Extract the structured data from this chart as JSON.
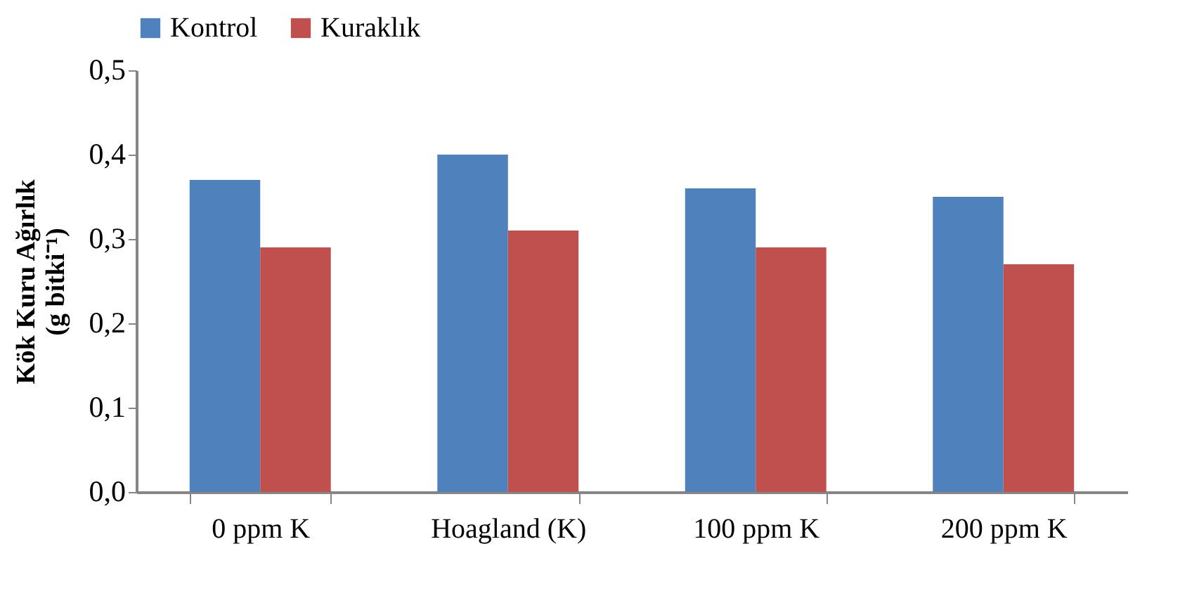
{
  "chart_data": {
    "type": "bar",
    "ylabel": "Kök Kuru Ağırlık\n(g bitki⁻¹)",
    "categories": [
      "0 ppm K",
      "Hoagland (K)",
      "100 ppm K",
      "200 ppm  K"
    ],
    "series": [
      {
        "name": "Kontrol",
        "color": "#4f81bd",
        "values": [
          0.37,
          0.4,
          0.36,
          0.35
        ]
      },
      {
        "name": "Kuraklık",
        "color": "#c0504d",
        "values": [
          0.29,
          0.31,
          0.29,
          0.27
        ]
      }
    ],
    "ylim": [
      0,
      0.5
    ],
    "yticks": [
      {
        "value": 0,
        "label": "0,0"
      },
      {
        "value": 0.1,
        "label": "0,1"
      },
      {
        "value": 0.2,
        "label": "0,2"
      },
      {
        "value": 0.3,
        "label": "0,3"
      },
      {
        "value": 0.4,
        "label": "0,4"
      },
      {
        "value": 0.5,
        "label": "0,5"
      }
    ],
    "grid": false,
    "legend": "top"
  }
}
